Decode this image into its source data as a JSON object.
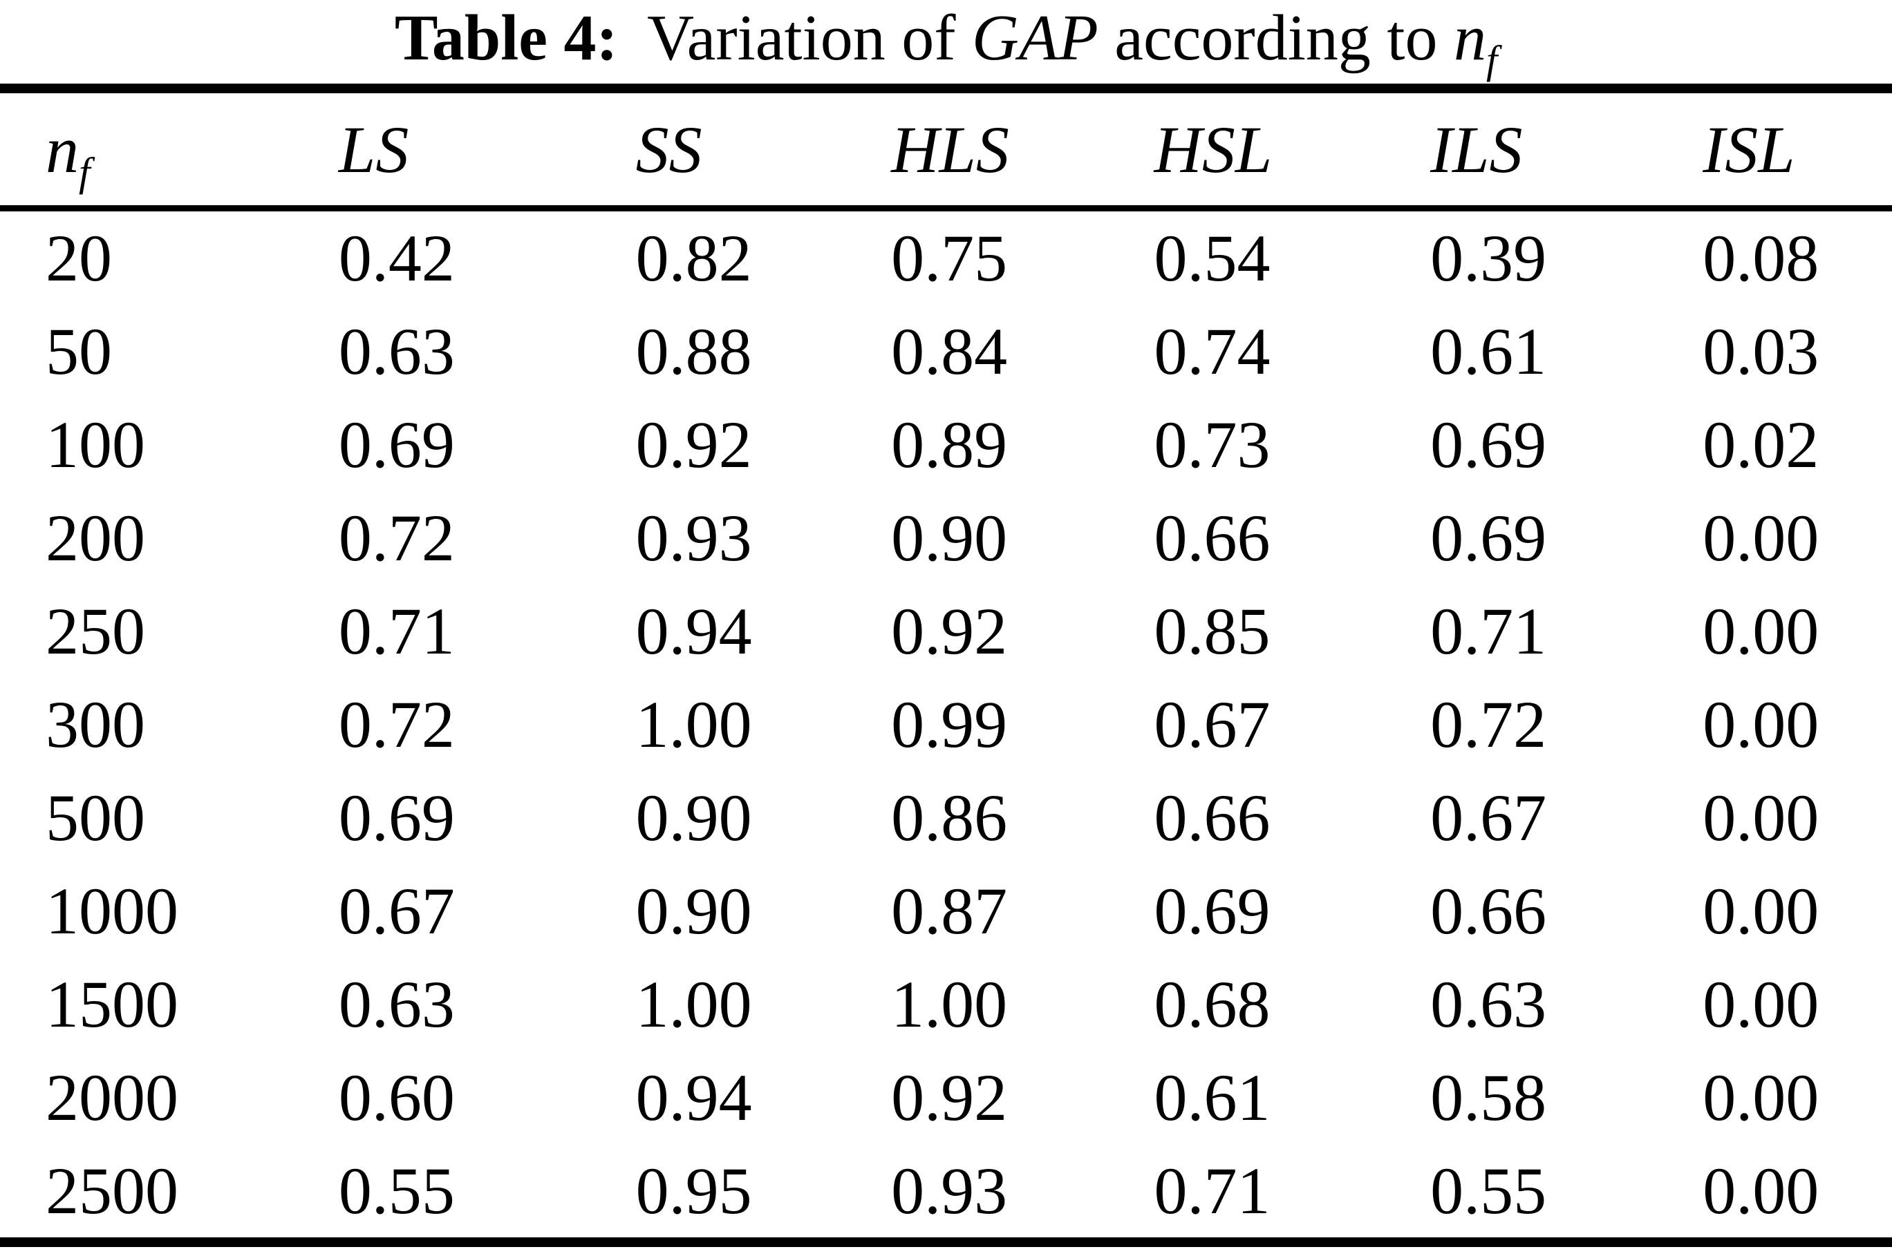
{
  "caption": {
    "label": "Table 4:",
    "segment_1": "Variation of",
    "gap": "GAP",
    "segment_2": "according to",
    "var_base": "n",
    "var_sub": "f"
  },
  "chart_data": {
    "type": "table",
    "title": "Table 4: Variation of GAP according to nf",
    "header": {
      "nf_base": "n",
      "nf_sub": "f",
      "cols": [
        "LS",
        "SS",
        "HLS",
        "HSL",
        "ILS",
        "ISL"
      ]
    },
    "rows": [
      [
        "20",
        "0.42",
        "0.82",
        "0.75",
        "0.54",
        "0.39",
        "0.08"
      ],
      [
        "50",
        "0.63",
        "0.88",
        "0.84",
        "0.74",
        "0.61",
        "0.03"
      ],
      [
        "100",
        "0.69",
        "0.92",
        "0.89",
        "0.73",
        "0.69",
        "0.02"
      ],
      [
        "200",
        "0.72",
        "0.93",
        "0.90",
        "0.66",
        "0.69",
        "0.00"
      ],
      [
        "250",
        "0.71",
        "0.94",
        "0.92",
        "0.85",
        "0.71",
        "0.00"
      ],
      [
        "300",
        "0.72",
        "1.00",
        "0.99",
        "0.67",
        "0.72",
        "0.00"
      ],
      [
        "500",
        "0.69",
        "0.90",
        "0.86",
        "0.66",
        "0.67",
        "0.00"
      ],
      [
        "1000",
        "0.67",
        "0.90",
        "0.87",
        "0.69",
        "0.66",
        "0.00"
      ],
      [
        "1500",
        "0.63",
        "1.00",
        "1.00",
        "0.68",
        "0.63",
        "0.00"
      ],
      [
        "2000",
        "0.60",
        "0.94",
        "0.92",
        "0.61",
        "0.58",
        "0.00"
      ],
      [
        "2500",
        "0.55",
        "0.95",
        "0.93",
        "0.71",
        "0.55",
        "0.00"
      ]
    ]
  }
}
